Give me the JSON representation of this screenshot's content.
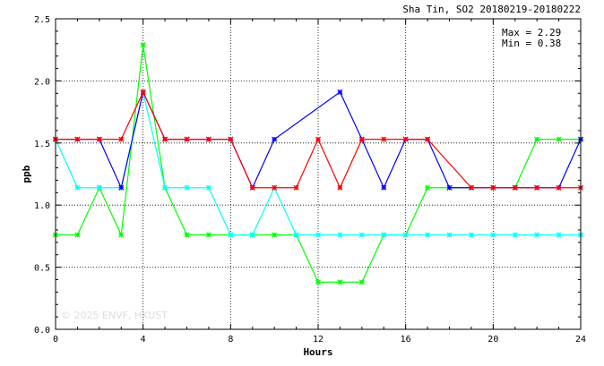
{
  "chart_data": {
    "type": "line",
    "title": "Sha Tin, SO2 20180219-20180222",
    "stats": {
      "max_label": "Max = 2.29",
      "min_label": "Min = 0.38"
    },
    "watermark": "© 2025  ENVF, HKUST",
    "xlabel": "Hours",
    "ylabel": "ppb",
    "xlim": [
      0,
      24
    ],
    "ylim": [
      0.0,
      2.5
    ],
    "xticks": [
      0,
      4,
      8,
      12,
      16,
      20,
      24
    ],
    "yticks": [
      0.0,
      0.5,
      1.0,
      1.5,
      2.0,
      2.5
    ],
    "ytick_labels": [
      "0.0",
      "0.5",
      "1.0",
      "1.5",
      "2.0",
      "2.5"
    ],
    "grid": true,
    "series": [
      {
        "color": "#00ff00",
        "x": [
          0,
          1,
          2,
          3,
          4,
          5,
          6,
          7,
          8,
          9,
          10,
          11,
          12,
          13,
          14,
          15,
          16,
          17,
          18,
          19,
          20,
          21,
          22,
          23,
          24
        ],
        "y": [
          0.76,
          0.76,
          1.14,
          0.76,
          2.29,
          1.14,
          0.76,
          0.76,
          0.76,
          0.76,
          0.76,
          0.76,
          0.38,
          0.38,
          0.38,
          0.76,
          0.76,
          1.14,
          1.14,
          1.14,
          1.14,
          1.14,
          1.53,
          1.53,
          1.53
        ]
      },
      {
        "color": "#00ffff",
        "x": [
          0,
          1,
          2,
          3,
          4,
          5,
          6,
          7,
          8,
          9,
          10,
          11,
          12,
          13,
          14,
          15,
          16,
          17,
          18,
          19,
          20,
          21,
          22,
          23,
          24
        ],
        "y": [
          1.53,
          1.14,
          1.14,
          1.14,
          1.91,
          1.14,
          1.14,
          1.14,
          0.76,
          0.76,
          1.14,
          0.76,
          0.76,
          0.76,
          0.76,
          0.76,
          0.76,
          0.76,
          0.76,
          0.76,
          0.76,
          0.76,
          0.76,
          0.76,
          0.76
        ]
      },
      {
        "color": "#0000ff",
        "x": [
          0,
          1,
          2,
          3,
          4,
          5,
          6,
          7,
          8,
          9,
          10,
          13,
          14,
          15,
          16,
          17,
          18,
          19,
          20,
          21,
          22,
          23,
          24
        ],
        "y": [
          1.53,
          1.53,
          1.53,
          1.14,
          1.91,
          1.53,
          1.53,
          1.53,
          1.53,
          1.14,
          1.53,
          1.91,
          1.53,
          1.14,
          1.53,
          1.53,
          1.14,
          1.14,
          1.14,
          1.14,
          1.14,
          1.14,
          1.53
        ]
      },
      {
        "color": "#ff0000",
        "x": [
          0,
          1,
          2,
          3,
          4,
          5,
          6,
          7,
          8,
          9,
          10,
          11,
          12,
          13,
          14,
          15,
          16,
          17,
          19,
          20,
          21,
          22,
          23,
          24
        ],
        "y": [
          1.53,
          1.53,
          1.53,
          1.53,
          1.91,
          1.53,
          1.53,
          1.53,
          1.53,
          1.14,
          1.14,
          1.14,
          1.53,
          1.14,
          1.53,
          1.53,
          1.53,
          1.53,
          1.14,
          1.14,
          1.14,
          1.14,
          1.14,
          1.14
        ]
      }
    ]
  }
}
